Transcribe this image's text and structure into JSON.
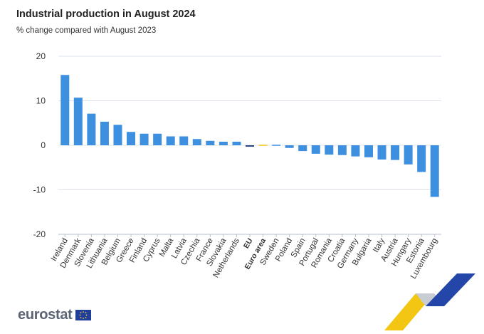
{
  "chart_data": {
    "type": "bar",
    "title": "Industrial production in August 2024",
    "subtitle": "% change compared with August 2023",
    "xlabel": "",
    "ylabel": "",
    "ylim": [
      -20,
      20
    ],
    "yticks": [
      20,
      10,
      0,
      -10,
      -20
    ],
    "grid": true,
    "categories": [
      "Ireland",
      "Denmark",
      "Slovenia",
      "Lithuania",
      "Belgium",
      "Greece",
      "Finland",
      "Cyprus",
      "Malta",
      "Latvia",
      "Czechia",
      "France",
      "Slovakia",
      "Netherlands",
      "EU",
      "Euro area",
      "Sweden",
      "Poland",
      "Spain",
      "Portugal",
      "Romania",
      "Croatia",
      "Germany",
      "Bulgaria",
      "Italy",
      "Austria",
      "Hungary",
      "Estonia",
      "Luxembourg"
    ],
    "values": [
      15.8,
      10.7,
      7.1,
      5.3,
      4.6,
      3.0,
      2.6,
      2.6,
      2.0,
      2.0,
      1.4,
      1.0,
      0.8,
      0.8,
      -0.3,
      0.0,
      0.0,
      -0.6,
      -1.3,
      -1.9,
      -2.1,
      -2.2,
      -2.5,
      -2.7,
      -3.2,
      -3.3,
      -4.3,
      -6.0,
      -11.6
    ],
    "bold_categories": [
      "EU",
      "Euro area"
    ],
    "colors": {
      "bar": "#3d8fe0",
      "eu": "#1f3a7a",
      "euro_area": "#f0c419",
      "grid": "#dde3ec",
      "axis_text": "#333333"
    }
  },
  "footer": {
    "logo_text": "eurostat"
  }
}
